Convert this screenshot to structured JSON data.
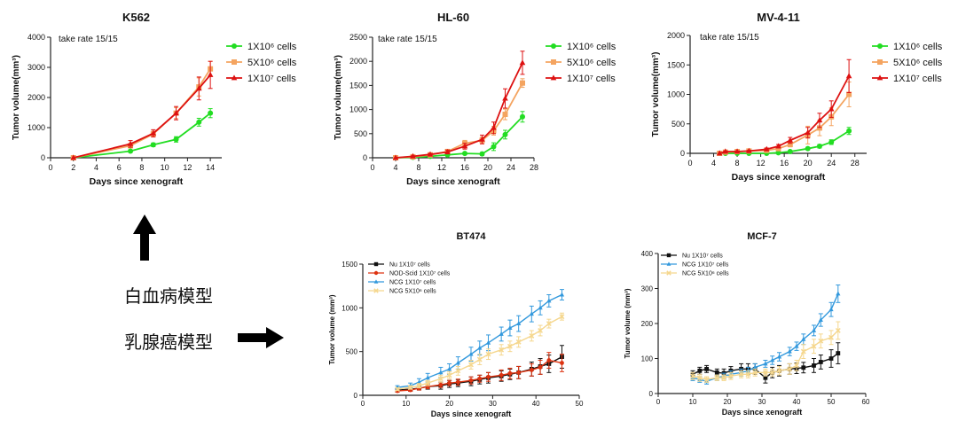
{
  "chart_data": [
    {
      "id": "k562",
      "type": "line",
      "title": "K562",
      "xlabel": "Days since xenograft",
      "ylabel": "Tumor volume(mm³)",
      "xlim": [
        0,
        15
      ],
      "ylim": [
        0,
        4000
      ],
      "xticks": [
        0,
        2,
        4,
        6,
        8,
        10,
        12,
        14
      ],
      "yticks": [
        0,
        1000,
        2000,
        3000,
        4000
      ],
      "annotation": "take rate 15/15",
      "series": [
        {
          "name": "1X10⁶ cells",
          "color": "#22dd22",
          "marker": "circle",
          "x": [
            2,
            7,
            9,
            11,
            13,
            14
          ],
          "y": [
            0,
            220,
            430,
            610,
            1180,
            1480
          ],
          "err": [
            0,
            40,
            60,
            90,
            130,
            150
          ]
        },
        {
          "name": "5X10⁶ cells",
          "color": "#f4a460",
          "marker": "square",
          "x": [
            2,
            7,
            9,
            11,
            13,
            14
          ],
          "y": [
            0,
            400,
            790,
            1480,
            2350,
            2950
          ],
          "err": [
            0,
            70,
            90,
            180,
            300,
            250
          ]
        },
        {
          "name": "1X10⁷ cells",
          "color": "#dd1111",
          "marker": "triangle",
          "x": [
            2,
            7,
            9,
            11,
            13,
            14
          ],
          "y": [
            0,
            460,
            810,
            1480,
            2300,
            2750
          ],
          "err": [
            0,
            110,
            120,
            220,
            380,
            450
          ]
        }
      ]
    },
    {
      "id": "hl60",
      "type": "line",
      "title": "HL-60",
      "xlabel": "Days since xenograft",
      "ylabel": "Tumor volume(mm³)",
      "xlim": [
        0,
        28
      ],
      "ylim": [
        0,
        2500
      ],
      "xticks": [
        0,
        4,
        8,
        12,
        16,
        20,
        24,
        28
      ],
      "yticks": [
        0,
        500,
        1000,
        1500,
        2000,
        2500
      ],
      "annotation": "take rate 15/15",
      "series": [
        {
          "name": "1X10⁶ cells",
          "color": "#22dd22",
          "marker": "circle",
          "x": [
            4,
            7,
            10,
            13,
            16,
            19,
            21,
            23,
            26
          ],
          "y": [
            0,
            10,
            30,
            60,
            90,
            80,
            230,
            480,
            850
          ],
          "err": [
            0,
            5,
            10,
            15,
            20,
            30,
            80,
            90,
            110
          ]
        },
        {
          "name": "5X10⁶ cells",
          "color": "#f4a460",
          "marker": "square",
          "x": [
            4,
            7,
            10,
            13,
            16,
            19,
            21,
            23,
            26
          ],
          "y": [
            0,
            20,
            60,
            130,
            300,
            360,
            560,
            900,
            1550
          ],
          "err": [
            0,
            10,
            20,
            30,
            60,
            70,
            90,
            110,
            90
          ]
        },
        {
          "name": "1X10⁷ cells",
          "color": "#dd1111",
          "marker": "triangle",
          "x": [
            4,
            7,
            10,
            13,
            16,
            19,
            21,
            23,
            26
          ],
          "y": [
            0,
            30,
            70,
            120,
            240,
            380,
            620,
            1230,
            1970
          ],
          "err": [
            0,
            10,
            20,
            40,
            60,
            90,
            120,
            200,
            240
          ]
        }
      ]
    },
    {
      "id": "mv411",
      "type": "line",
      "title": "MV-4-11",
      "xlabel": "Days since xenograft",
      "ylabel": "Tumor volume(mm³)",
      "xlim": [
        0,
        30
      ],
      "ylim": [
        0,
        2000
      ],
      "xticks": [
        0,
        4,
        8,
        12,
        16,
        20,
        24,
        28
      ],
      "yticks": [
        0,
        500,
        1000,
        1500,
        2000
      ],
      "annotation": "take rate 15/15",
      "series": [
        {
          "name": "1X10⁶ cells",
          "color": "#22dd22",
          "marker": "circle",
          "x": [
            5,
            6,
            8,
            10,
            13,
            15,
            17,
            20,
            22,
            24,
            27
          ],
          "y": [
            0,
            0,
            0,
            0,
            0,
            10,
            30,
            80,
            120,
            190,
            380
          ],
          "err": [
            0,
            0,
            0,
            0,
            0,
            5,
            10,
            20,
            30,
            40,
            60
          ]
        },
        {
          "name": "5X10⁶ cells",
          "color": "#f4a460",
          "marker": "square",
          "x": [
            5,
            6,
            8,
            10,
            13,
            15,
            17,
            20,
            22,
            24,
            27
          ],
          "y": [
            0,
            20,
            30,
            40,
            50,
            80,
            150,
            310,
            430,
            620,
            1000
          ],
          "err": [
            0,
            10,
            10,
            10,
            15,
            20,
            40,
            150,
            130,
            150,
            210
          ]
        },
        {
          "name": "1X10⁷ cells",
          "color": "#dd1111",
          "marker": "triangle",
          "x": [
            5,
            6,
            8,
            10,
            13,
            15,
            17,
            20,
            22,
            24,
            27
          ],
          "y": [
            0,
            30,
            30,
            40,
            70,
            120,
            220,
            350,
            560,
            750,
            1310
          ],
          "err": [
            0,
            10,
            10,
            10,
            20,
            30,
            50,
            90,
            120,
            140,
            280
          ]
        }
      ]
    },
    {
      "id": "bt474",
      "type": "line",
      "title": "BT474",
      "xlabel": "Days since xenograft",
      "ylabel": "Tumor volume (mm³)",
      "xlim": [
        0,
        50
      ],
      "ylim": [
        0,
        1500
      ],
      "xticks": [
        0,
        10,
        20,
        30,
        40,
        50
      ],
      "yticks": [
        0,
        500,
        1000,
        1500
      ],
      "series": [
        {
          "name": "Nu 1X10⁷ cells",
          "color": "#111111",
          "marker": "square",
          "x": [
            8,
            11,
            13,
            15,
            18,
            20,
            22,
            25,
            27,
            29,
            32,
            34,
            36,
            39,
            41,
            43,
            46
          ],
          "y": [
            60,
            70,
            80,
            100,
            110,
            130,
            140,
            160,
            180,
            200,
            220,
            240,
            260,
            300,
            330,
            360,
            440
          ],
          "err": [
            20,
            20,
            20,
            30,
            40,
            40,
            40,
            50,
            50,
            60,
            60,
            60,
            70,
            80,
            90,
            100,
            130
          ]
        },
        {
          "name": "NOD-Scid 1X10⁷ cells",
          "color": "#dd3311",
          "marker": "circle",
          "x": [
            8,
            11,
            13,
            15,
            18,
            20,
            22,
            25,
            27,
            29,
            32,
            34,
            36,
            39,
            41,
            43,
            46
          ],
          "y": [
            50,
            60,
            80,
            100,
            120,
            140,
            150,
            170,
            190,
            210,
            230,
            250,
            260,
            290,
            320,
            400,
            370
          ],
          "err": [
            15,
            15,
            20,
            25,
            30,
            30,
            35,
            40,
            40,
            50,
            60,
            60,
            70,
            70,
            80,
            90,
            100
          ]
        },
        {
          "name": "NCG 1X10⁷ cells",
          "color": "#3399dd",
          "marker": "triangle",
          "x": [
            8,
            11,
            13,
            15,
            18,
            20,
            22,
            25,
            27,
            29,
            32,
            34,
            36,
            39,
            41,
            43,
            46
          ],
          "y": [
            90,
            110,
            150,
            200,
            260,
            300,
            370,
            470,
            540,
            600,
            700,
            770,
            820,
            930,
            1000,
            1080,
            1150
          ],
          "err": [
            20,
            30,
            40,
            50,
            60,
            60,
            70,
            80,
            80,
            90,
            80,
            90,
            90,
            90,
            80,
            70,
            60
          ]
        },
        {
          "name": "NCG 5X10⁶ cells",
          "color": "#f5d78e",
          "marker": "x",
          "x": [
            8,
            11,
            13,
            15,
            18,
            20,
            22,
            25,
            27,
            29,
            32,
            34,
            36,
            39,
            41,
            43,
            46
          ],
          "y": [
            70,
            90,
            110,
            140,
            190,
            230,
            280,
            350,
            410,
            470,
            520,
            560,
            610,
            680,
            740,
            820,
            900
          ],
          "err": [
            15,
            20,
            25,
            30,
            40,
            40,
            50,
            50,
            60,
            60,
            60,
            60,
            60,
            60,
            60,
            50,
            40
          ]
        }
      ]
    },
    {
      "id": "mcf7",
      "type": "line",
      "title": "MCF-7",
      "xlabel": "Days since xenograft",
      "ylabel": "Tumor volume (mm³)",
      "xlim": [
        0,
        60
      ],
      "ylim": [
        0,
        400
      ],
      "xticks": [
        0,
        10,
        20,
        30,
        40,
        50,
        60
      ],
      "yticks": [
        0,
        100,
        200,
        300,
        400
      ],
      "series": [
        {
          "name": "Nu 1X10⁷ cells",
          "color": "#111111",
          "marker": "square",
          "x": [
            10,
            12,
            14,
            17,
            19,
            21,
            24,
            26,
            28,
            31,
            33,
            35,
            38,
            40,
            42,
            45,
            47,
            50,
            52
          ],
          "y": [
            55,
            65,
            70,
            60,
            58,
            65,
            70,
            70,
            70,
            45,
            60,
            65,
            70,
            72,
            74,
            80,
            90,
            100,
            115
          ],
          "err": [
            10,
            10,
            10,
            10,
            12,
            12,
            15,
            15,
            15,
            15,
            15,
            15,
            15,
            15,
            15,
            20,
            20,
            25,
            30
          ]
        },
        {
          "name": "NCG 1X10⁷ cells",
          "color": "#3399dd",
          "marker": "triangle",
          "x": [
            10,
            12,
            14,
            17,
            19,
            21,
            24,
            26,
            28,
            31,
            33,
            35,
            38,
            40,
            42,
            45,
            47,
            50,
            52
          ],
          "y": [
            45,
            40,
            35,
            45,
            50,
            55,
            60,
            65,
            75,
            85,
            95,
            105,
            120,
            135,
            155,
            180,
            210,
            240,
            285
          ],
          "err": [
            8,
            8,
            8,
            8,
            8,
            10,
            10,
            10,
            10,
            10,
            12,
            12,
            12,
            12,
            15,
            15,
            18,
            20,
            25
          ]
        },
        {
          "name": "NCG 5X10⁶ cells",
          "color": "#f5d78e",
          "marker": "x",
          "x": [
            10,
            12,
            14,
            17,
            19,
            21,
            24,
            26,
            28,
            31,
            33,
            35,
            38,
            40,
            42,
            45,
            47,
            50,
            52
          ],
          "y": [
            50,
            45,
            40,
            45,
            45,
            50,
            55,
            55,
            60,
            60,
            60,
            65,
            70,
            80,
            120,
            135,
            150,
            160,
            180
          ],
          "err": [
            10,
            10,
            8,
            8,
            8,
            10,
            10,
            10,
            10,
            10,
            10,
            12,
            15,
            15,
            20,
            20,
            20,
            20,
            25
          ]
        }
      ]
    }
  ],
  "captions": {
    "leukemia": "白血病模型",
    "breast": "乳腺癌模型"
  }
}
